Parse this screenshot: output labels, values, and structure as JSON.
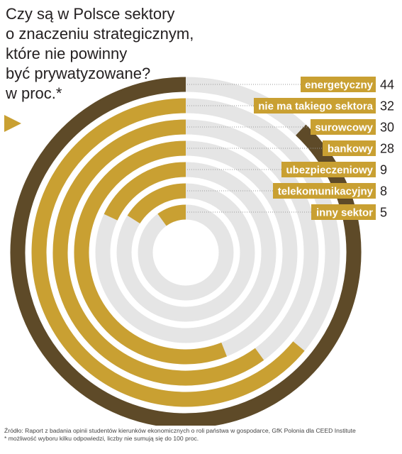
{
  "title_lines": [
    "Czy są w Polsce sektory",
    "o znaczeniu strategicznym,",
    "które nie powinny",
    "być prywatyzowane?",
    "w proc.*"
  ],
  "colors": {
    "accent": "#c9a032",
    "first_ring": "#5e4a28",
    "track": "#e5e5e5",
    "label_text": "#ffffff",
    "text": "#231f20"
  },
  "chart_data": {
    "type": "radial-bar",
    "title": "Czy są w Polsce sektory o znaczeniu strategicznym, które nie powinny być prywatyzowane? w proc.*",
    "max": 50,
    "categories": [
      "energetyczny",
      "nie ma takiego sektora",
      "surowcowy",
      "bankowy",
      "ubezpieczeniowy",
      "telekomunikacyjny",
      "inny sektor"
    ],
    "values": [
      44,
      32,
      30,
      28,
      9,
      8,
      5
    ]
  },
  "footer": {
    "source": "Źródło: Raport z badania opinii studentów kierunków ekonomicznych o roli państwa w gospodarce, GfK Polonia dla CEED Institute",
    "note": "* możliwość wyboru kilku odpowiedzi, liczby nie sumują się do 100 proc."
  }
}
